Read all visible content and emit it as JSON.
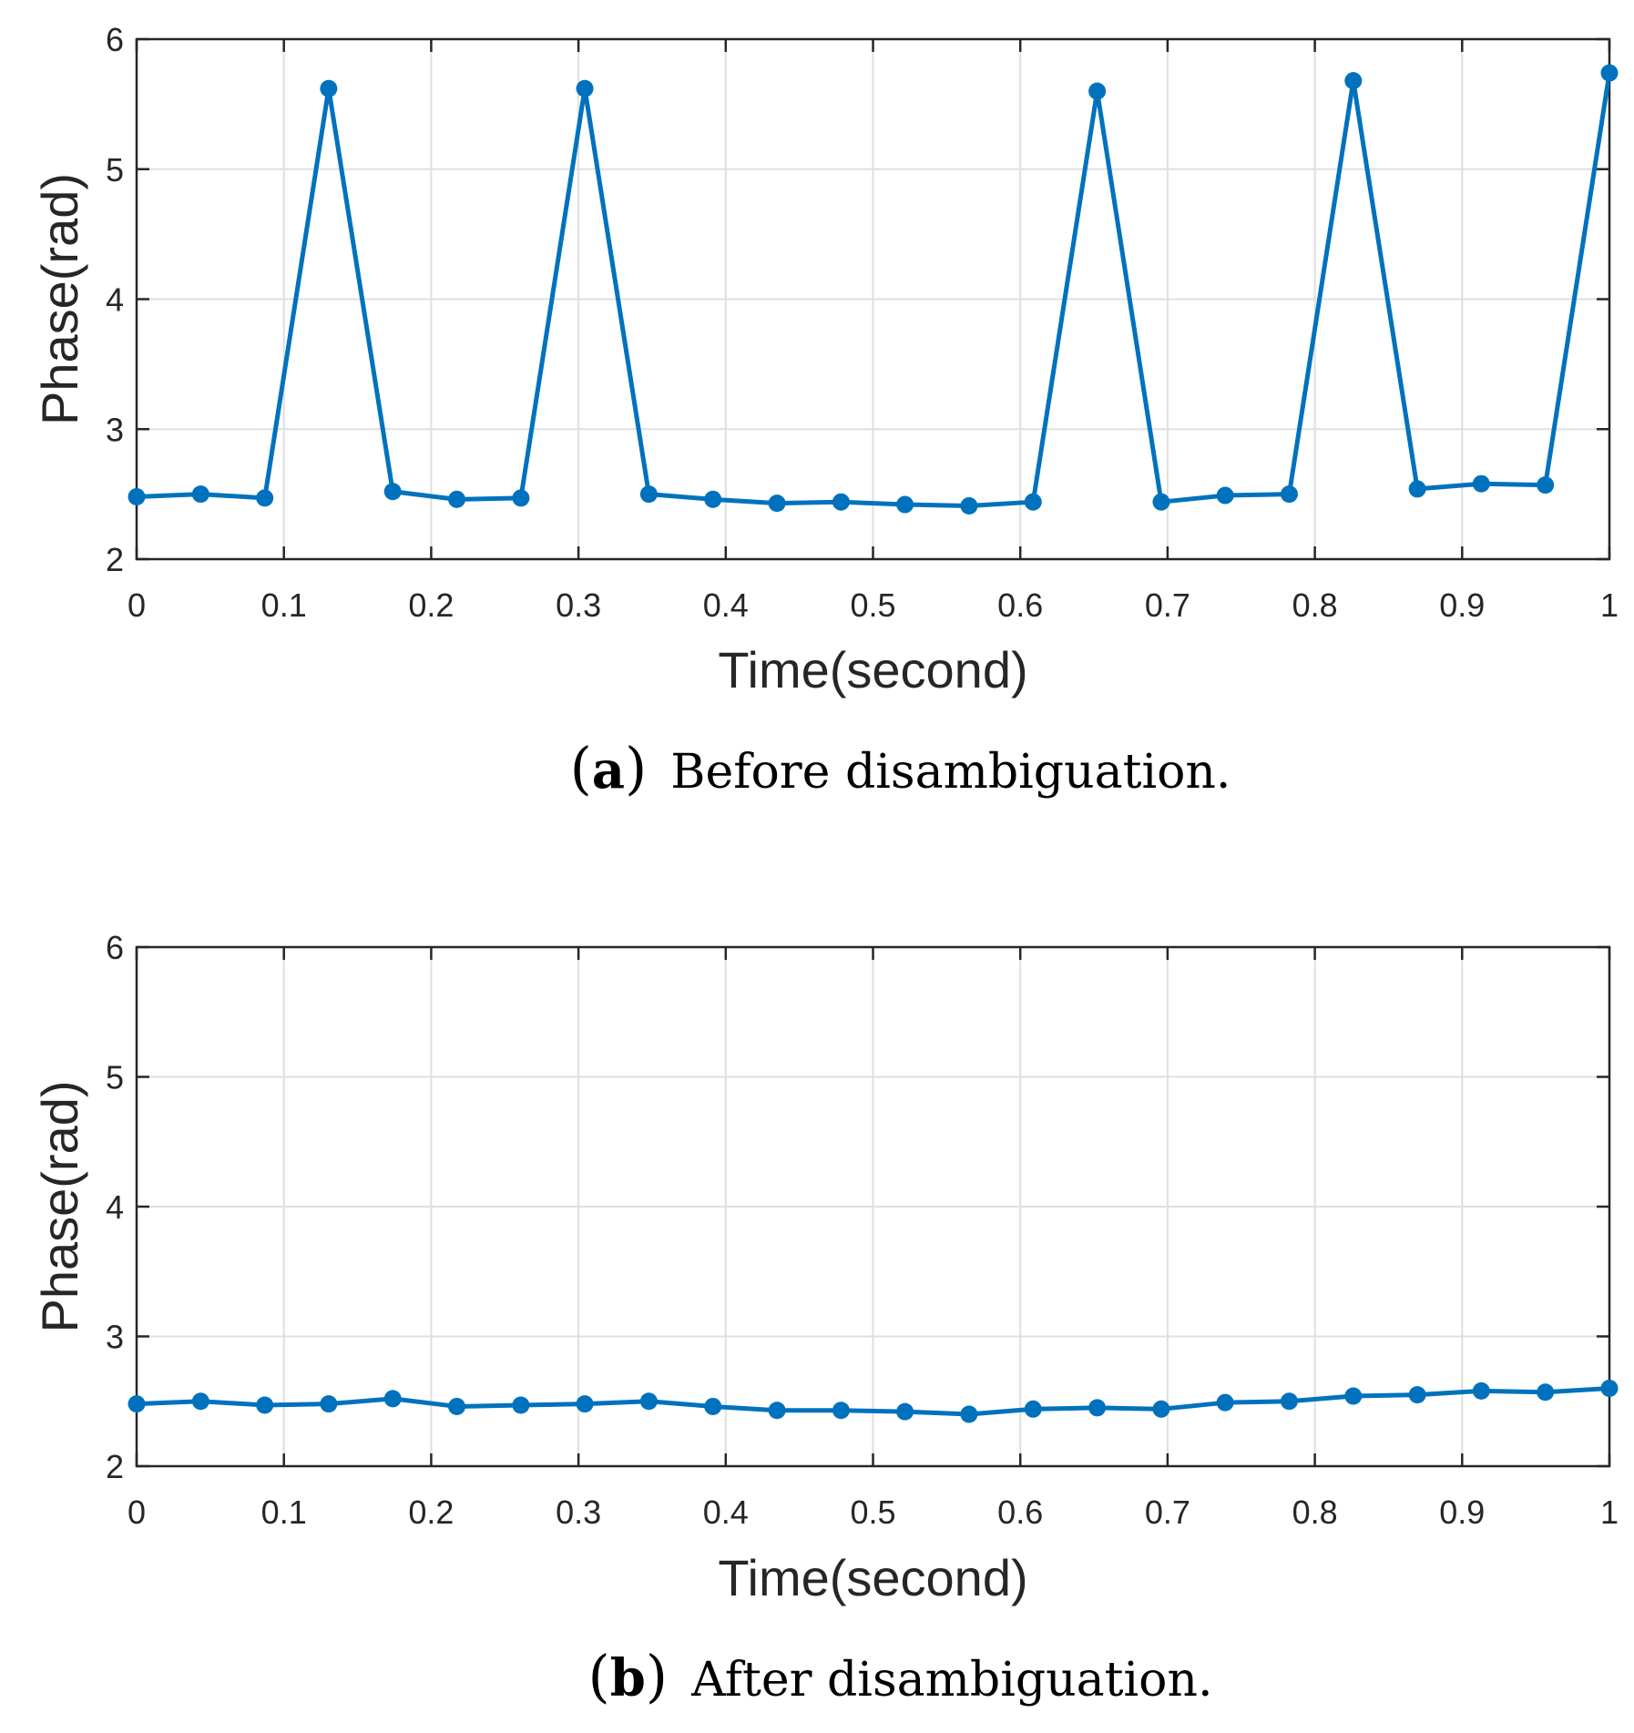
{
  "chart_data": [
    {
      "type": "line",
      "panel_letter": "a",
      "caption": "Before disambiguation.",
      "xlabel": "Time(second)",
      "ylabel": "Phase(rad)",
      "xlim": [
        0,
        1
      ],
      "ylim": [
        2,
        6
      ],
      "xticks": [
        "0",
        "0.1",
        "0.2",
        "0.3",
        "0.4",
        "0.5",
        "0.6",
        "0.7",
        "0.8",
        "0.9",
        "1"
      ],
      "yticks": [
        "2",
        "3",
        "4",
        "5",
        "6"
      ],
      "grid": true,
      "line_color": "#0072BD",
      "series": [
        {
          "name": "phase",
          "x": [
            0,
            0.0435,
            0.087,
            0.1304,
            0.1739,
            0.2174,
            0.2609,
            0.3043,
            0.3478,
            0.3913,
            0.4348,
            0.4783,
            0.5217,
            0.5652,
            0.6087,
            0.6522,
            0.6957,
            0.7391,
            0.7826,
            0.8261,
            0.8696,
            0.913,
            0.9565,
            1.0
          ],
          "y": [
            2.48,
            2.5,
            2.47,
            5.62,
            2.52,
            2.46,
            2.47,
            5.62,
            2.5,
            2.46,
            2.43,
            2.44,
            2.42,
            2.41,
            2.44,
            5.6,
            2.44,
            2.49,
            2.5,
            5.68,
            2.54,
            2.58,
            2.57,
            5.74
          ]
        }
      ]
    },
    {
      "type": "line",
      "panel_letter": "b",
      "caption": "After disambiguation.",
      "xlabel": "Time(second)",
      "ylabel": "Phase(rad)",
      "xlim": [
        0,
        1
      ],
      "ylim": [
        2,
        6
      ],
      "xticks": [
        "0",
        "0.1",
        "0.2",
        "0.3",
        "0.4",
        "0.5",
        "0.6",
        "0.7",
        "0.8",
        "0.9",
        "1"
      ],
      "yticks": [
        "2",
        "3",
        "4",
        "5",
        "6"
      ],
      "grid": true,
      "line_color": "#0072BD",
      "series": [
        {
          "name": "phase",
          "x": [
            0,
            0.0435,
            0.087,
            0.1304,
            0.1739,
            0.2174,
            0.2609,
            0.3043,
            0.3478,
            0.3913,
            0.4348,
            0.4783,
            0.5217,
            0.5652,
            0.6087,
            0.6522,
            0.6957,
            0.7391,
            0.7826,
            0.8261,
            0.8696,
            0.913,
            0.9565,
            1.0
          ],
          "y": [
            2.48,
            2.5,
            2.47,
            2.48,
            2.52,
            2.46,
            2.47,
            2.48,
            2.5,
            2.46,
            2.43,
            2.43,
            2.42,
            2.4,
            2.44,
            2.45,
            2.44,
            2.49,
            2.5,
            2.54,
            2.55,
            2.58,
            2.57,
            2.6
          ]
        }
      ]
    }
  ]
}
